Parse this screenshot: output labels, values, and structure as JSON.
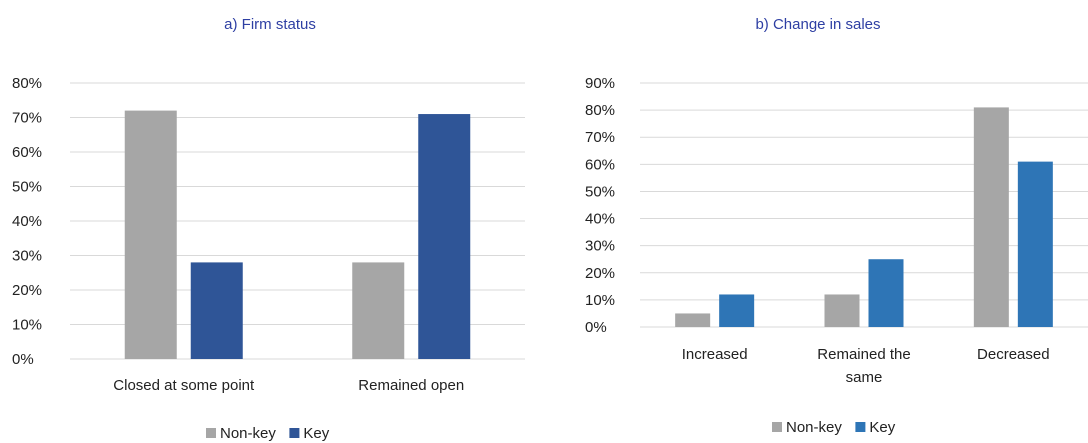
{
  "charts": {
    "a": {
      "title": "a) Firm status",
      "legend": [
        "Non-key",
        "Key"
      ]
    },
    "b": {
      "title": "b) Change in sales",
      "legend": [
        "Non-key",
        "Key"
      ]
    }
  },
  "colors": {
    "nonkey": "#A6A6A6",
    "key_a": "#2F5597",
    "key_b": "#2E75B6"
  },
  "chart_data": [
    {
      "type": "bar",
      "title": "a) Firm status",
      "categories": [
        "Closed at some point",
        "Remained open"
      ],
      "series": [
        {
          "name": "Non-key",
          "values": [
            72,
            28
          ]
        },
        {
          "name": "Key",
          "values": [
            28,
            71
          ]
        }
      ],
      "ylim": [
        0,
        80
      ],
      "yticks": [
        "0%",
        "10%",
        "20%",
        "30%",
        "40%",
        "50%",
        "60%",
        "70%",
        "80%"
      ],
      "ylabel": "",
      "xlabel": "",
      "legend_position": "bottom",
      "grid": true
    },
    {
      "type": "bar",
      "title": "b) Change in sales",
      "categories": [
        "Increased",
        "Remained the same",
        "Decreased"
      ],
      "series": [
        {
          "name": "Non-key",
          "values": [
            5,
            12,
            81
          ]
        },
        {
          "name": "Key",
          "values": [
            12,
            25,
            61
          ]
        }
      ],
      "ylim": [
        0,
        90
      ],
      "yticks": [
        "0%",
        "10%",
        "20%",
        "30%",
        "40%",
        "50%",
        "60%",
        "70%",
        "80%",
        "90%"
      ],
      "ylabel": "",
      "xlabel": "",
      "legend_position": "bottom",
      "grid": true
    }
  ]
}
